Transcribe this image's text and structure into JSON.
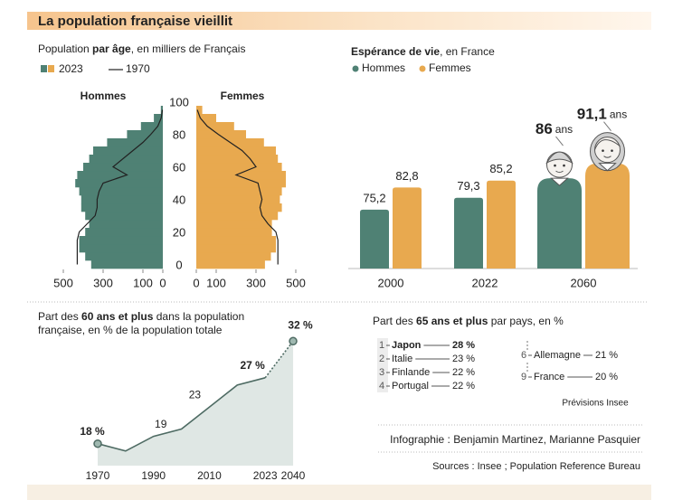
{
  "title": "La population française vieillit",
  "chart_data": [
    {
      "type": "pyramid",
      "subtitle": [
        "Population ",
        "par âge",
        ", en milliers de Français"
      ],
      "sides": [
        "Hommes",
        "Femmes"
      ],
      "ages": [
        0,
        5,
        10,
        15,
        20,
        25,
        30,
        35,
        40,
        45,
        50,
        55,
        60,
        65,
        70,
        75,
        80,
        85,
        90,
        95
      ],
      "series": [
        {
          "name": "2023",
          "colors": [
            "#4f8174",
            "#e8a94f"
          ],
          "men": [
            360,
            390,
            420,
            420,
            390,
            370,
            390,
            410,
            410,
            420,
            440,
            430,
            400,
            370,
            350,
            280,
            180,
            110,
            45,
            10
          ],
          "women": [
            345,
            375,
            400,
            400,
            380,
            380,
            410,
            430,
            420,
            430,
            450,
            450,
            430,
            410,
            400,
            340,
            250,
            190,
            100,
            30
          ]
        },
        {
          "name": "1970",
          "color": "#222222",
          "men": [
            430,
            430,
            430,
            430,
            420,
            380,
            340,
            330,
            330,
            320,
            300,
            180,
            250,
            200,
            150,
            100,
            60,
            25,
            8,
            2
          ],
          "women": [
            410,
            410,
            410,
            410,
            400,
            360,
            330,
            320,
            330,
            320,
            310,
            200,
            300,
            270,
            230,
            170,
            110,
            55,
            20,
            5
          ]
        }
      ],
      "xlim": [
        0,
        500
      ],
      "xticks": [
        0,
        100,
        300,
        500
      ],
      "ylim": [
        0,
        100
      ],
      "yticks": [
        0,
        20,
        40,
        60,
        80,
        100
      ]
    },
    {
      "type": "bar",
      "title": [
        "Espérance de vie",
        ", en France"
      ],
      "categories": [
        "2000",
        "2022",
        "2060"
      ],
      "series": [
        {
          "name": "Hommes",
          "color": "#4f8174",
          "values": [
            75.2,
            79.3,
            86
          ],
          "value_labels": [
            "75,2",
            "79,3",
            "86"
          ]
        },
        {
          "name": "Femmes",
          "color": "#e8a94f",
          "values": [
            82.8,
            85.2,
            91.1
          ],
          "value_labels": [
            "82,8",
            "85,2",
            "91,1"
          ]
        }
      ],
      "unit": "ans",
      "ylim": [
        55,
        100
      ]
    },
    {
      "type": "area",
      "title": [
        "Part des ",
        "60 ans et plus",
        " dans la population française, en % de la population totale"
      ],
      "categories": [
        "1970",
        null,
        "1990",
        null,
        "2010",
        null,
        "2023",
        "2040"
      ],
      "values": [
        18,
        17,
        19,
        20,
        23,
        26,
        27,
        32
      ],
      "value_labels": [
        "18 %",
        null,
        "19",
        null,
        "23",
        null,
        "27 %",
        "32 %"
      ],
      "color": "#4e6b63",
      "fill": "#dfe7e4",
      "ylim": [
        15,
        35
      ]
    }
  ],
  "ranking": {
    "title": [
      "Part des ",
      "65 ans et plus",
      " par pays, en %"
    ],
    "items": [
      {
        "rank": 1,
        "name": "Japon",
        "value": "28 %"
      },
      {
        "rank": 2,
        "name": "Italie",
        "value": "23 %"
      },
      {
        "rank": 3,
        "name": "Finlande",
        "value": "22 %"
      },
      {
        "rank": 4,
        "name": "Portugal",
        "value": "22 %"
      },
      {
        "rank": 6,
        "name": "Allemagne",
        "value": "21 %"
      },
      {
        "rank": 9,
        "name": "France",
        "value": "20 %"
      }
    ]
  },
  "note": "Prévisions Insee",
  "credits": "Infographie : Benjamin Martinez, Marianne Pasquier",
  "sources": "Sources : Insee ; Population Reference Bureau"
}
